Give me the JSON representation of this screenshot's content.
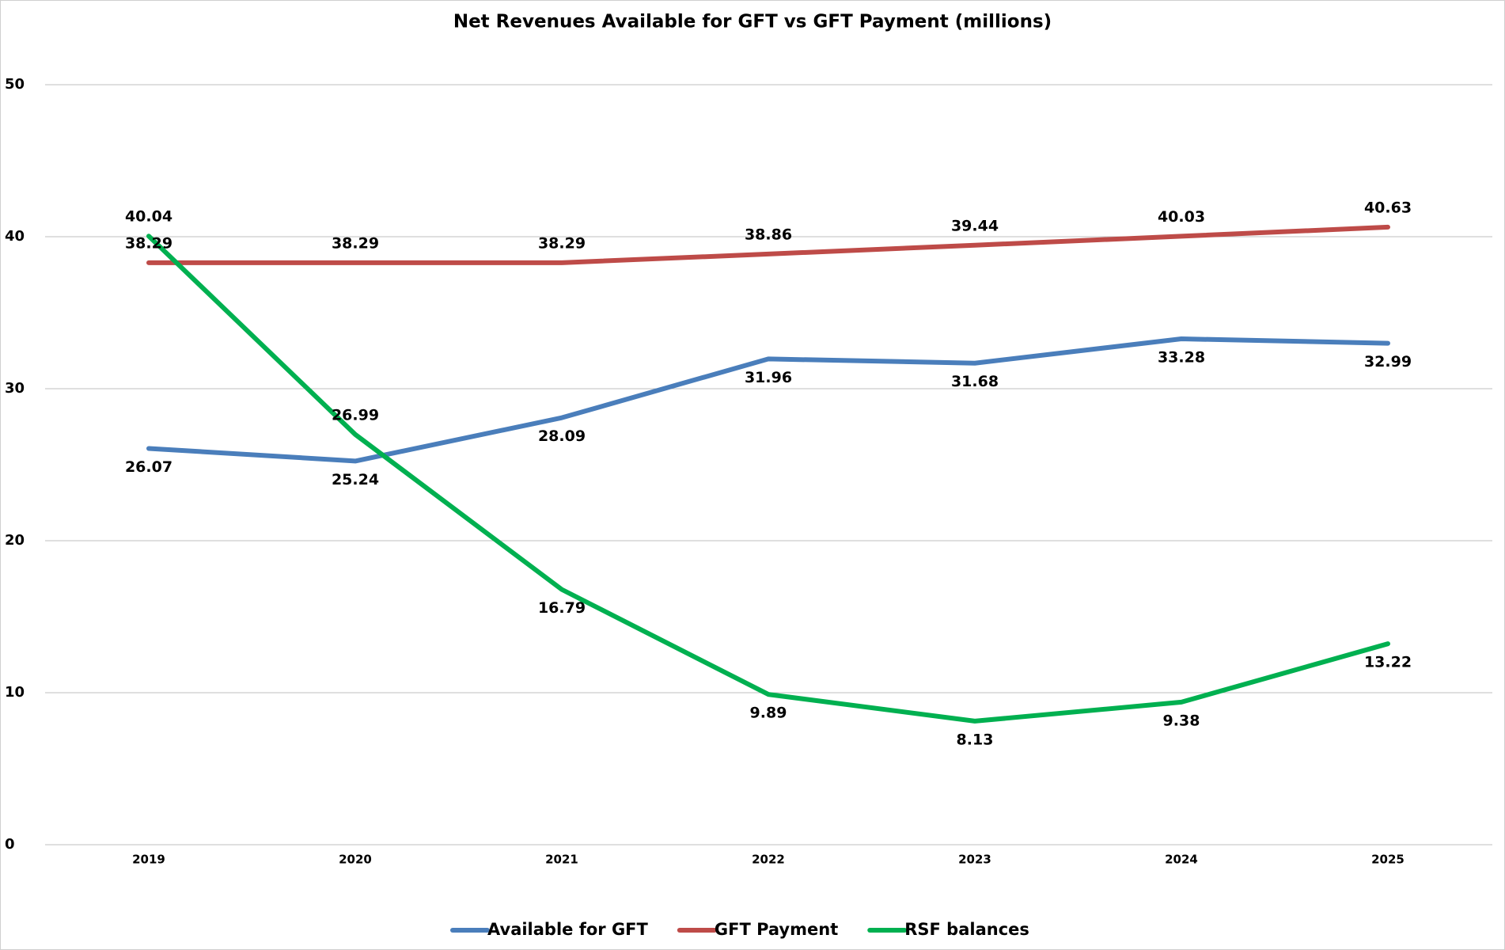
{
  "chart_data": {
    "type": "line",
    "title": "Net Revenues Available for GFT vs GFT Payment (millions)",
    "categories": [
      "2019",
      "2020",
      "2021",
      "2022",
      "2023",
      "2024",
      "2025"
    ],
    "series": [
      {
        "name": "Available for GFT",
        "color": "#4a7ebb",
        "values": [
          26.07,
          25.24,
          28.09,
          31.96,
          31.68,
          33.28,
          32.99
        ]
      },
      {
        "name": "GFT Payment",
        "color": "#be4b48",
        "values": [
          38.29,
          38.29,
          38.29,
          38.86,
          39.44,
          40.03,
          40.63
        ]
      },
      {
        "name": "RSF balances",
        "color": "#00b050",
        "values": [
          40.04,
          26.99,
          16.79,
          9.89,
          8.13,
          9.38,
          13.22
        ]
      }
    ],
    "ylim": [
      0,
      50
    ],
    "yticks": [
      0,
      10,
      20,
      30,
      40,
      50
    ],
    "grid": true,
    "legend": "bottom"
  }
}
